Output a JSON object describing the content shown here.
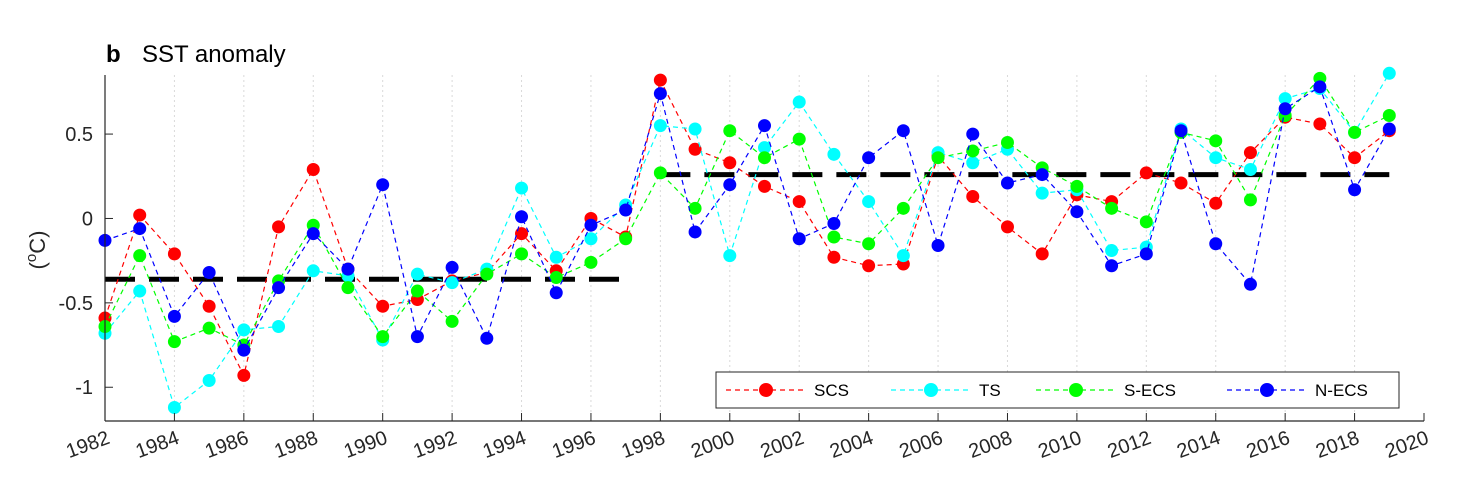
{
  "chart_data": {
    "type": "line",
    "panel_letter": "b",
    "title": "SST anomaly",
    "ylabel": {
      "prefix": "(",
      "superscript": "o",
      "unit": "C)"
    },
    "xlim": [
      1982,
      2020
    ],
    "ylim": [
      -1.2,
      0.85
    ],
    "x_ticks": [
      "1982",
      "1984",
      "1986",
      "1988",
      "1990",
      "1992",
      "1994",
      "1996",
      "1998",
      "2000",
      "2002",
      "2004",
      "2006",
      "2008",
      "2010",
      "2012",
      "2014",
      "2016",
      "2018",
      "2020"
    ],
    "y_ticks": [
      {
        "value": 0.5,
        "label": "0.5"
      },
      {
        "value": 0,
        "label": "0"
      },
      {
        "value": -0.5,
        "label": "-0.5"
      },
      {
        "value": -1,
        "label": "-1"
      }
    ],
    "grid": "vertical dotted at x ticks",
    "legend_position": "bottom-right",
    "x": [
      1982,
      1983,
      1984,
      1985,
      1986,
      1987,
      1988,
      1989,
      1990,
      1991,
      1992,
      1993,
      1994,
      1995,
      1996,
      1997,
      1998,
      1999,
      2000,
      2001,
      2002,
      2003,
      2004,
      2005,
      2006,
      2007,
      2008,
      2009,
      2010,
      2011,
      2012,
      2013,
      2014,
      2015,
      2016,
      2017,
      2018,
      2019
    ],
    "series": [
      {
        "name": "SCS",
        "color": "#ff0000",
        "values": [
          -0.59,
          0.02,
          -0.21,
          -0.52,
          -0.93,
          -0.05,
          0.29,
          -0.3,
          -0.52,
          -0.48,
          -0.37,
          -0.32,
          -0.09,
          -0.31,
          0.0,
          -0.11,
          0.82,
          0.41,
          0.33,
          0.19,
          0.1,
          -0.23,
          -0.28,
          -0.27,
          0.37,
          0.13,
          -0.05,
          -0.21,
          0.14,
          0.1,
          0.27,
          0.21,
          0.09,
          0.39,
          0.6,
          0.56,
          0.36,
          0.52
        ]
      },
      {
        "name": "TS",
        "color": "#00ffff",
        "values": [
          -0.68,
          -0.43,
          -1.12,
          -0.96,
          -0.66,
          -0.64,
          -0.31,
          -0.34,
          -0.72,
          -0.33,
          -0.38,
          -0.3,
          0.18,
          -0.23,
          -0.12,
          0.08,
          0.55,
          0.53,
          -0.22,
          0.42,
          0.69,
          0.38,
          0.1,
          -0.22,
          0.39,
          0.33,
          0.41,
          0.15,
          0.17,
          -0.19,
          -0.17,
          0.53,
          0.36,
          0.29,
          0.71,
          0.77,
          0.51,
          0.86
        ]
      },
      {
        "name": "S-ECS",
        "color": "#00ff00",
        "values": [
          -0.64,
          -0.22,
          -0.73,
          -0.65,
          -0.75,
          -0.37,
          -0.04,
          -0.41,
          -0.7,
          -0.43,
          -0.61,
          -0.33,
          -0.21,
          -0.35,
          -0.26,
          -0.12,
          0.27,
          0.06,
          0.52,
          0.36,
          0.47,
          -0.11,
          -0.15,
          0.06,
          0.36,
          0.4,
          0.45,
          0.3,
          0.19,
          0.06,
          -0.02,
          0.51,
          0.46,
          0.11,
          0.61,
          0.83,
          0.51,
          0.61
        ]
      },
      {
        "name": "N-ECS",
        "color": "#0000ff",
        "values": [
          -0.13,
          -0.06,
          -0.58,
          -0.32,
          -0.78,
          -0.41,
          -0.09,
          -0.3,
          0.2,
          -0.7,
          -0.29,
          -0.71,
          0.01,
          -0.44,
          -0.04,
          0.05,
          0.74,
          -0.08,
          0.2,
          0.55,
          -0.12,
          -0.03,
          0.36,
          0.52,
          -0.16,
          0.5,
          0.21,
          0.26,
          0.04,
          -0.28,
          -0.21,
          0.52,
          -0.15,
          -0.39,
          0.65,
          0.78,
          0.17,
          0.53
        ]
      }
    ],
    "mean_lines": [
      {
        "x_start": 1982,
        "x_end": 1997,
        "value": -0.36,
        "color": "#000000"
      },
      {
        "x_start": 1998,
        "x_end": 2019,
        "value": 0.26,
        "color": "#000000"
      }
    ]
  }
}
